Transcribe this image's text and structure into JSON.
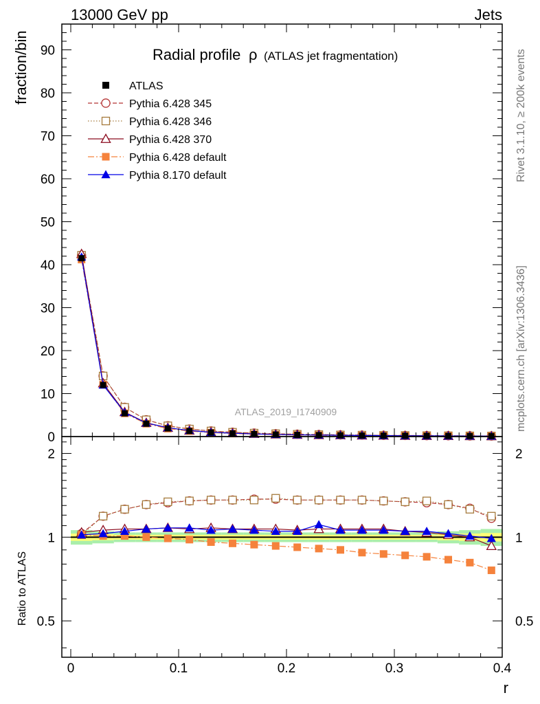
{
  "header": {
    "left": "13000 GeV pp",
    "right": "Jets"
  },
  "side_labels": {
    "top": "Rivet 3.1.10, ≥ 200k events",
    "bottom": "mcplots.cern.ch [arXiv:1306.3436]"
  },
  "chart_data": {
    "type": "line",
    "title": "Radial profile",
    "title_symbol": "ρ",
    "subtitle": "(ATLAS jet fragmentation)",
    "analysis_tag": "ATLAS_2019_I1740909",
    "xlabel": "r",
    "ylabel_main": "fraction/bin",
    "ylabel_ratio": "Ratio to ATLAS",
    "xlim": [
      0,
      0.4
    ],
    "ylim_main": [
      0,
      96
    ],
    "ylim_ratio": [
      0.37,
      2.3
    ],
    "ratio_log_scale": true,
    "x_ticks": [
      "0",
      "0.1",
      "0.2",
      "0.3",
      "0.4"
    ],
    "y_ticks_main": [
      "0",
      "10",
      "20",
      "30",
      "40",
      "50",
      "60",
      "70",
      "80",
      "90"
    ],
    "y_ticks_ratio": [
      "0.5",
      "1",
      "2"
    ],
    "legend_position": "top-left",
    "x": [
      0.01,
      0.03,
      0.05,
      0.07,
      0.09,
      0.11,
      0.13,
      0.15,
      0.17,
      0.19,
      0.21,
      0.23,
      0.25,
      0.27,
      0.29,
      0.31,
      0.33,
      0.35,
      0.37,
      0.39
    ],
    "series": [
      {
        "name": "ATLAS",
        "color": "#000000",
        "marker": "square-filled",
        "line": "none",
        "values": [
          41.5,
          12.0,
          5.4,
          3.0,
          1.9,
          1.3,
          0.95,
          0.73,
          0.58,
          0.47,
          0.39,
          0.33,
          0.28,
          0.24,
          0.21,
          0.18,
          0.16,
          0.14,
          0.12,
          0.11
        ],
        "ratio": [
          1,
          1,
          1,
          1,
          1,
          1,
          1,
          1,
          1,
          1,
          1,
          1,
          1,
          1,
          1,
          1,
          1,
          1,
          1,
          1
        ]
      },
      {
        "name": "Pythia 6.428 345",
        "color": "#b43232",
        "marker": "circle-open",
        "line": "dashed",
        "values": [
          42.2,
          14.1,
          6.8,
          3.9,
          2.5,
          1.75,
          1.3,
          1.0,
          0.8,
          0.65,
          0.54,
          0.46,
          0.38,
          0.33,
          0.28,
          0.25,
          0.22,
          0.19,
          0.16,
          0.13
        ],
        "ratio": [
          1.03,
          1.19,
          1.26,
          1.31,
          1.33,
          1.35,
          1.36,
          1.36,
          1.37,
          1.37,
          1.36,
          1.36,
          1.36,
          1.36,
          1.35,
          1.34,
          1.33,
          1.31,
          1.27,
          1.17
        ]
      },
      {
        "name": "Pythia 6.428 346",
        "color": "#a57a3c",
        "marker": "square-open",
        "line": "dotted",
        "values": [
          42.2,
          14.1,
          6.8,
          3.9,
          2.5,
          1.75,
          1.3,
          1.0,
          0.8,
          0.66,
          0.54,
          0.46,
          0.38,
          0.33,
          0.28,
          0.25,
          0.22,
          0.19,
          0.16,
          0.13
        ],
        "ratio": [
          1.02,
          1.19,
          1.26,
          1.31,
          1.34,
          1.35,
          1.36,
          1.36,
          1.36,
          1.38,
          1.36,
          1.36,
          1.36,
          1.36,
          1.35,
          1.34,
          1.35,
          1.31,
          1.26,
          1.19
        ]
      },
      {
        "name": "Pythia 6.428 370",
        "color": "#8b0a1e",
        "marker": "triangle-open",
        "line": "solid",
        "values": [
          42.5,
          12.4,
          5.7,
          3.2,
          2.05,
          1.4,
          1.02,
          0.78,
          0.62,
          0.5,
          0.42,
          0.35,
          0.3,
          0.26,
          0.22,
          0.19,
          0.17,
          0.15,
          0.12,
          0.1
        ],
        "ratio": [
          1.04,
          1.06,
          1.07,
          1.07,
          1.08,
          1.07,
          1.08,
          1.07,
          1.07,
          1.07,
          1.06,
          1.07,
          1.07,
          1.07,
          1.07,
          1.05,
          1.04,
          1.02,
          1.0,
          0.93
        ]
      },
      {
        "name": "Pythia 6.428 default",
        "color": "#f5823c",
        "marker": "square-filled",
        "line": "dashdot",
        "values": [
          41.2,
          12.1,
          5.4,
          3.0,
          1.85,
          1.27,
          0.92,
          0.7,
          0.55,
          0.44,
          0.36,
          0.3,
          0.25,
          0.21,
          0.18,
          0.16,
          0.14,
          0.12,
          0.1,
          0.085
        ],
        "ratio": [
          1.02,
          1.01,
          1.01,
          1.0,
          0.99,
          0.98,
          0.96,
          0.95,
          0.94,
          0.93,
          0.92,
          0.91,
          0.9,
          0.88,
          0.87,
          0.86,
          0.85,
          0.83,
          0.81,
          0.76
        ]
      },
      {
        "name": "Pythia 8.170 default",
        "color": "#0000e6",
        "marker": "triangle-filled",
        "line": "solid",
        "values": [
          41.8,
          12.0,
          5.6,
          3.15,
          2.05,
          1.4,
          1.0,
          0.78,
          0.61,
          0.49,
          0.41,
          0.35,
          0.3,
          0.26,
          0.22,
          0.19,
          0.17,
          0.15,
          0.12,
          0.11
        ],
        "ratio": [
          1.02,
          1.03,
          1.05,
          1.07,
          1.08,
          1.08,
          1.06,
          1.07,
          1.06,
          1.05,
          1.05,
          1.11,
          1.06,
          1.06,
          1.06,
          1.05,
          1.05,
          1.03,
          1.01,
          0.99
        ]
      }
    ],
    "data_band": {
      "stat_color": "#ffff77",
      "total_color": "#aaeeaa",
      "rel_halfwidth": [
        0.06,
        0.05,
        0.04,
        0.04,
        0.04,
        0.04,
        0.04,
        0.04,
        0.04,
        0.04,
        0.04,
        0.04,
        0.04,
        0.04,
        0.04,
        0.04,
        0.04,
        0.05,
        0.06,
        0.07
      ]
    }
  }
}
